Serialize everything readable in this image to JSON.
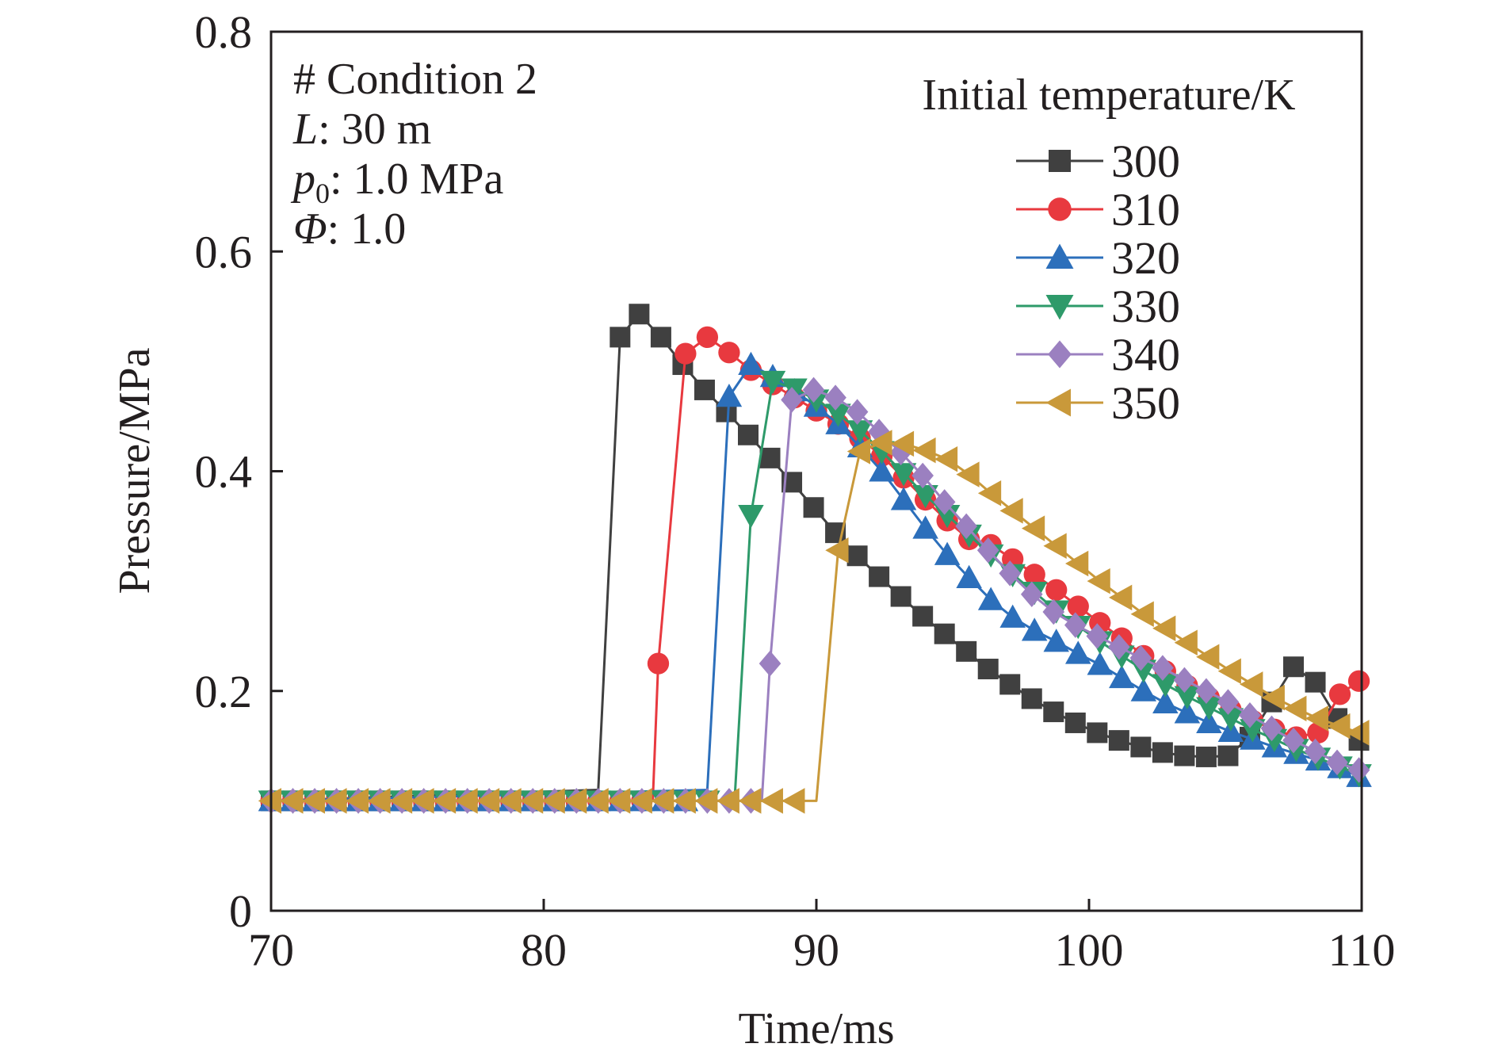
{
  "chart_data": {
    "type": "line",
    "xlabel": "Time/ms",
    "ylabel": "Pressure/MPa",
    "xlim": [
      70,
      110
    ],
    "ylim": [
      0,
      0.8
    ],
    "xticks": [
      "70",
      "80",
      "90",
      "100",
      "110"
    ],
    "yticks": [
      "0",
      "0.2",
      "0.4",
      "0.6",
      "0.8"
    ],
    "grid": false,
    "legend_title": "Initial temperature/K",
    "legend_position": "top-right",
    "annotation_lines": [
      {
        "prefix": "# Condition 2",
        "italic": "",
        "sub": "",
        "rest": ""
      },
      {
        "prefix": "",
        "italic": "L",
        "sub": "",
        "rest": ": 30 m"
      },
      {
        "prefix": "",
        "italic": "p",
        "sub": "0",
        "rest": ": 1.0 MPa"
      },
      {
        "prefix": "",
        "italic": "Φ",
        "sub": "",
        "rest": ": 1.0"
      }
    ],
    "series": [
      {
        "name": "300",
        "color": "#404040",
        "marker": "square",
        "x": [
          70,
          82.0,
          82.8,
          83.5,
          84.3,
          85.1,
          85.9,
          86.7,
          87.5,
          88.3,
          89.1,
          89.9,
          90.7,
          91.5,
          92.3,
          93.1,
          93.9,
          94.7,
          95.5,
          96.3,
          97.1,
          97.9,
          98.7,
          99.5,
          100.3,
          101.1,
          101.9,
          102.7,
          103.5,
          104.3,
          105.1,
          105.9,
          106.7,
          107.5,
          108.3,
          109.1,
          109.9
        ],
        "y": [
          0.1,
          0.11,
          0.522,
          0.543,
          0.522,
          0.497,
          0.474,
          0.454,
          0.433,
          0.412,
          0.39,
          0.367,
          0.344,
          0.323,
          0.304,
          0.286,
          0.268,
          0.252,
          0.236,
          0.22,
          0.206,
          0.193,
          0.181,
          0.171,
          0.162,
          0.155,
          0.149,
          0.144,
          0.141,
          0.14,
          0.141,
          0.158,
          0.19,
          0.222,
          0.208,
          0.175,
          0.155
        ]
      },
      {
        "name": "310",
        "color": "#e8393f",
        "marker": "circle",
        "x": [
          70,
          84.0,
          84.2,
          85.2,
          86.0,
          86.8,
          87.6,
          88.4,
          89.2,
          90.0,
          90.8,
          91.6,
          92.4,
          93.2,
          94.0,
          94.8,
          95.6,
          96.4,
          97.2,
          98.0,
          98.8,
          99.6,
          100.4,
          101.2,
          102.0,
          102.8,
          103.6,
          104.4,
          105.2,
          106.0,
          106.8,
          107.6,
          108.4,
          109.2,
          109.9
        ],
        "y": [
          0.1,
          0.1,
          0.225,
          0.507,
          0.522,
          0.508,
          0.492,
          0.479,
          0.467,
          0.455,
          0.443,
          0.43,
          0.414,
          0.394,
          0.374,
          0.355,
          0.338,
          0.333,
          0.32,
          0.306,
          0.292,
          0.277,
          0.262,
          0.248,
          0.232,
          0.218,
          0.205,
          0.194,
          0.183,
          0.173,
          0.165,
          0.158,
          0.162,
          0.197,
          0.209
        ]
      },
      {
        "name": "320",
        "color": "#2c6fbb",
        "marker": "triangle-up",
        "x": [
          70,
          86.0,
          86.8,
          87.6,
          88.4,
          89.2,
          90.0,
          90.8,
          91.6,
          92.4,
          93.2,
          94.0,
          94.8,
          95.6,
          96.4,
          97.2,
          98.0,
          98.8,
          99.6,
          100.4,
          101.2,
          102.0,
          102.8,
          103.6,
          104.4,
          105.2,
          106.0,
          106.8,
          107.6,
          108.4,
          109.2,
          109.9
        ],
        "y": [
          0.1,
          0.11,
          0.468,
          0.497,
          0.486,
          0.473,
          0.459,
          0.443,
          0.422,
          0.4,
          0.374,
          0.348,
          0.324,
          0.303,
          0.283,
          0.267,
          0.255,
          0.245,
          0.234,
          0.224,
          0.212,
          0.2,
          0.189,
          0.18,
          0.171,
          0.163,
          0.156,
          0.149,
          0.143,
          0.137,
          0.13,
          0.122
        ]
      },
      {
        "name": "330",
        "color": "#2e9a6a",
        "marker": "triangle-down",
        "x": [
          70,
          87.0,
          87.6,
          88.4,
          89.2,
          90.0,
          90.8,
          91.6,
          92.4,
          93.2,
          94.0,
          94.8,
          95.6,
          96.4,
          97.2,
          98.0,
          98.8,
          99.6,
          100.4,
          101.2,
          102.0,
          102.8,
          103.6,
          104.4,
          105.2,
          106.0,
          106.8,
          107.6,
          108.4,
          109.2,
          109.9
        ],
        "y": [
          0.1,
          0.1,
          0.36,
          0.482,
          0.475,
          0.465,
          0.452,
          0.437,
          0.418,
          0.398,
          0.378,
          0.36,
          0.342,
          0.324,
          0.306,
          0.29,
          0.273,
          0.259,
          0.245,
          0.232,
          0.219,
          0.206,
          0.195,
          0.185,
          0.175,
          0.165,
          0.156,
          0.147,
          0.139,
          0.131,
          0.124
        ]
      },
      {
        "name": "340",
        "color": "#9b80c0",
        "marker": "diamond",
        "x": [
          70,
          88.0,
          88.3,
          89.1,
          89.9,
          90.7,
          91.5,
          92.3,
          93.1,
          93.9,
          94.7,
          95.5,
          96.3,
          97.1,
          97.9,
          98.7,
          99.5,
          100.3,
          101.1,
          101.9,
          102.7,
          103.5,
          104.3,
          105.1,
          105.9,
          106.7,
          107.5,
          108.3,
          109.1,
          109.9
        ],
        "y": [
          0.1,
          0.1,
          0.225,
          0.465,
          0.474,
          0.467,
          0.454,
          0.436,
          0.417,
          0.396,
          0.372,
          0.35,
          0.328,
          0.307,
          0.288,
          0.272,
          0.26,
          0.25,
          0.24,
          0.23,
          0.221,
          0.21,
          0.2,
          0.19,
          0.178,
          0.166,
          0.155,
          0.145,
          0.135,
          0.128
        ]
      },
      {
        "name": "350",
        "color": "#c9993a",
        "marker": "triangle-left",
        "x": [
          70,
          90.0,
          90.8,
          91.6,
          92.4,
          93.2,
          94.0,
          94.8,
          95.6,
          96.4,
          97.2,
          98.0,
          98.8,
          99.6,
          100.4,
          101.2,
          102.0,
          102.8,
          103.6,
          104.4,
          105.2,
          106.0,
          106.8,
          107.6,
          108.4,
          109.2,
          109.9
        ],
        "y": [
          0.1,
          0.1,
          0.328,
          0.418,
          0.426,
          0.425,
          0.419,
          0.411,
          0.397,
          0.38,
          0.364,
          0.348,
          0.332,
          0.316,
          0.3,
          0.285,
          0.27,
          0.257,
          0.244,
          0.231,
          0.218,
          0.206,
          0.194,
          0.184,
          0.175,
          0.168,
          0.162
        ]
      }
    ]
  }
}
